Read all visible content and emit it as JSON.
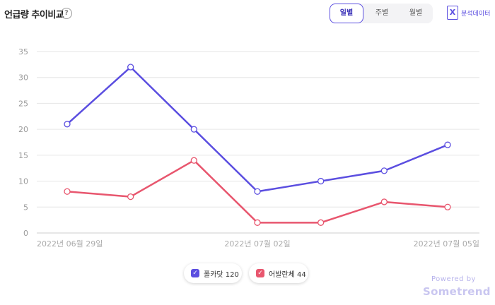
{
  "header": {
    "title": "언급량 추이비교",
    "help_symbol": "?",
    "tabs": [
      {
        "label": "일별",
        "active": true
      },
      {
        "label": "주별",
        "active": false
      },
      {
        "label": "월별",
        "active": false
      }
    ],
    "excel_icon": "X",
    "excel_label": "분석데이터"
  },
  "chart_data": {
    "type": "line",
    "x": [
      "2022년 06월 29일",
      "2022년 06월 30일",
      "2022년 07월 01일",
      "2022년 07월 02일",
      "2022년 07월 03일",
      "2022년 07월 04일",
      "2022년 07월 05일"
    ],
    "x_tick_labels": [
      "2022년 06월 29일",
      "2022년 07월 02일",
      "2022년 07월 05일"
    ],
    "ylim": [
      0,
      35
    ],
    "y_ticks": [
      0,
      5,
      10,
      15,
      20,
      25,
      30,
      35
    ],
    "grid": true,
    "legend_position": "bottom",
    "series": [
      {
        "name": "폴카닷",
        "total": "120",
        "color": "#5b4ee0",
        "values": [
          21,
          32,
          20,
          8,
          10,
          12,
          17
        ]
      },
      {
        "name": "어발란체",
        "total": "44",
        "color": "#e8566e",
        "values": [
          8,
          7,
          14,
          2,
          2,
          6,
          5
        ]
      }
    ]
  },
  "legend": {
    "check_symbol": "✓"
  },
  "footer": {
    "powered_by": "Powered by",
    "brand": "Sometrend"
  }
}
